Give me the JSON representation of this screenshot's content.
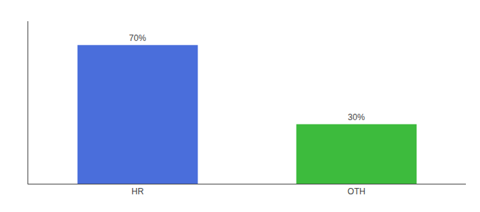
{
  "chart_data": {
    "type": "bar",
    "categories": [
      "HR",
      "OTH"
    ],
    "values": [
      70,
      30
    ],
    "value_labels": [
      "70%",
      "30%"
    ],
    "colors": [
      "#4a6edb",
      "#3dbb3d"
    ],
    "ylim": [
      0,
      82
    ],
    "data_labels": true,
    "tick_labels": "x",
    "grid": false
  }
}
